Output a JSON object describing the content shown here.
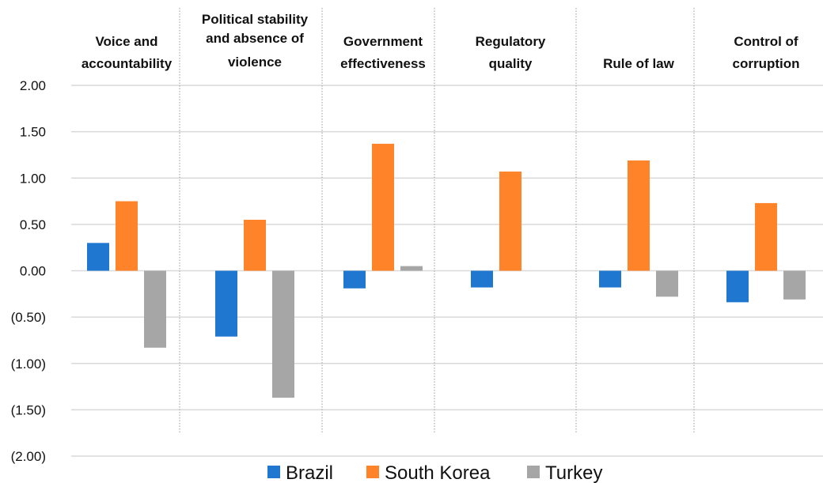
{
  "chart_data": {
    "type": "bar",
    "title": "",
    "xlabel": "",
    "ylabel": "",
    "categories": [
      [
        "Voice and",
        "accountability"
      ],
      [
        "Political stability",
        "and absence of",
        "violence"
      ],
      [
        "Government",
        "effectiveness"
      ],
      [
        "Regulatory",
        "quality"
      ],
      [
        "Rule of law"
      ],
      [
        "Control of",
        "corruption"
      ]
    ],
    "series": [
      {
        "name": "Brazil",
        "color": "#1f77d0",
        "values": [
          0.3,
          -0.71,
          -0.19,
          -0.18,
          -0.18,
          -0.34
        ]
      },
      {
        "name": "South Korea",
        "color": "#ff8328",
        "values": [
          0.75,
          0.55,
          1.37,
          1.07,
          1.19,
          0.73
        ]
      },
      {
        "name": "Turkey",
        "color": "#a6a6a6",
        "values": [
          -0.83,
          -1.37,
          0.05,
          0.0,
          -0.28,
          -0.31
        ]
      }
    ],
    "ylim": [
      -2.0,
      2.0
    ],
    "yticks": [
      2.0,
      1.5,
      1.0,
      0.5,
      0.0,
      -0.5,
      -1.0,
      -1.5,
      -2.0
    ],
    "ytick_labels": [
      "2.00",
      "1.50",
      "1.00",
      "0.50",
      "0.00",
      "(0.50)",
      "(1.00)",
      "(1.50)",
      "(2.00)"
    ],
    "grid": true,
    "category_separators": true,
    "legend_position": "bottom"
  }
}
